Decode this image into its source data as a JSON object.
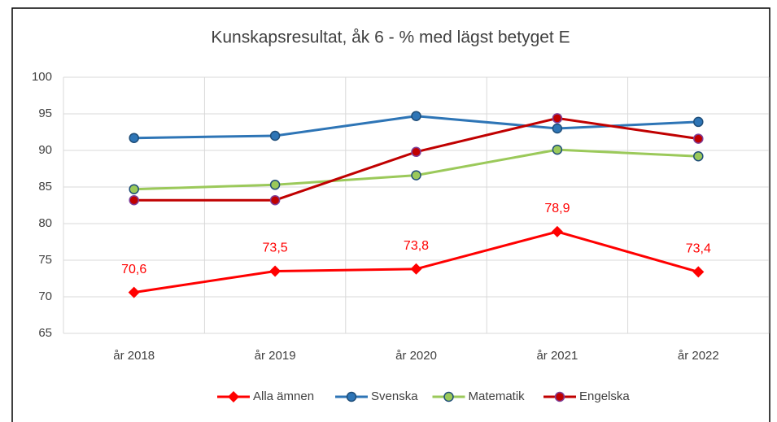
{
  "chart_data": {
    "type": "line",
    "title": "Kunskapsresultat, åk 6 - % med lägst betyget E",
    "categories": [
      "år 2018",
      "år 2019",
      "år 2020",
      "år 2021",
      "år 2022"
    ],
    "series": [
      {
        "name": "Alla ämnen",
        "color": "#ff0000",
        "marker": "diamond",
        "values": [
          70.6,
          73.5,
          73.8,
          78.9,
          73.4
        ],
        "value_labels": [
          "70,6",
          "73,5",
          "73,8",
          "78,9",
          "73,4"
        ]
      },
      {
        "name": "Svenska",
        "color": "#2e75b6",
        "marker": "circle",
        "values": [
          91.7,
          92.0,
          94.7,
          93.0,
          93.9
        ]
      },
      {
        "name": "Matematik",
        "color": "#9bc95a",
        "marker": "circle",
        "values": [
          84.7,
          85.3,
          86.6,
          90.1,
          89.2
        ]
      },
      {
        "name": "Engelska",
        "color": "#c00000",
        "marker": "circle",
        "values": [
          83.2,
          83.2,
          89.8,
          94.4,
          91.6
        ]
      }
    ],
    "ylim": [
      65,
      100
    ],
    "yticks": [
      65,
      70,
      75,
      80,
      85,
      90,
      95,
      100
    ],
    "grid": true,
    "legend": "bottom"
  }
}
